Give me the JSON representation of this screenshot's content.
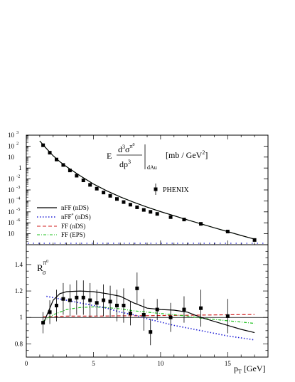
{
  "chart_data": [
    {
      "type": "scatter",
      "ylabel": {
        "prefix": "E",
        "numerator": "d",
        "numerator_sup": "3",
        "sigma": "σ",
        "pi_sup": "π",
        "pi_zero": "0",
        "denominator": "dp",
        "denominator_sup": "3",
        "subscript": "dAu",
        "units": "[mb / GeV",
        "units_sup": "2",
        "units_close": "]"
      },
      "xlim": [
        0,
        18
      ],
      "ylim_log10": [
        -7,
        3
      ],
      "yscale": "log",
      "ytick_exponents": [
        "3",
        "2",
        "",
        "-1",
        "-2",
        "-3",
        "-4",
        "-5",
        "-6",
        ""
      ],
      "ytick_base": "10",
      "ytick_one": "1",
      "legend": {
        "position": "bottom-left",
        "entries": [
          {
            "label": "nFF (nDS)",
            "color": "#000000",
            "style": "solid"
          },
          {
            "label": "nFF",
            "sup": "*",
            "label_suffix": " (nDS)",
            "color": "#1f1fd6",
            "style": "dotted"
          },
          {
            "label": "FF (nDS)",
            "color": "#d01f1f",
            "style": "dashed"
          },
          {
            "label": "FF (EPS)",
            "color": "#1fc21f",
            "style": "dashdot"
          }
        ]
      },
      "data_label": "PHENIX",
      "series": [
        {
          "name": "PHENIX",
          "marker": "square",
          "x": [
            1.25,
            1.75,
            2.25,
            2.75,
            3.25,
            3.75,
            4.25,
            4.75,
            5.25,
            5.75,
            6.25,
            6.75,
            7.25,
            7.75,
            8.25,
            8.75,
            9.25,
            9.75,
            10.75,
            11.75,
            13.0,
            15.0,
            17.0
          ],
          "y": [
            120,
            25,
            6,
            1.9,
            0.6,
            0.2,
            0.075,
            0.029,
            0.013,
            0.0058,
            0.0029,
            0.0015,
            0.00078,
            0.00045,
            0.00026,
            0.00015,
            0.0001,
            6.5e-05,
            3.3e-05,
            2e-05,
            8e-06,
            1.6e-06,
            2.7e-07
          ]
        },
        {
          "name": "nFF (nDS)",
          "x": [
            1.0,
            1.5,
            2.0,
            2.5,
            3.0,
            4.0,
            5.0,
            6.0,
            7.0,
            8.0,
            9.0,
            10.0,
            12.0,
            14.0,
            16.0,
            17.0
          ],
          "y": [
            300,
            60,
            13,
            3.8,
            1.3,
            0.2,
            0.035,
            0.0082,
            0.0023,
            0.00075,
            0.00027,
            0.000105,
            1.85e-05,
            3.5e-06,
            7e-07,
            3.2e-07
          ]
        }
      ]
    },
    {
      "type": "line",
      "ylabel": {
        "main": "R",
        "sub": "σ",
        "sup": "π",
        "sup_zero": "0"
      },
      "xlabel": {
        "main": "p",
        "sub": "T",
        "units": " [GeV]"
      },
      "xlim": [
        0,
        18
      ],
      "ylim": [
        0.7,
        1.55
      ],
      "xticks": [
        "0",
        "5",
        "10",
        "15"
      ],
      "yticks": [
        "0.8",
        "1",
        "1.2",
        "1.4"
      ],
      "reference_line": 1.0,
      "series": [
        {
          "name": "nFF (nDS)",
          "color": "#000000",
          "style": "solid",
          "x": [
            1.25,
            2.0,
            2.5,
            3.0,
            4.0,
            5.0,
            6.0,
            7.0,
            8.0,
            9.0,
            10.0,
            11.0,
            12.0,
            13.0,
            14.0,
            15.0,
            16.0,
            17.0
          ],
          "y": [
            0.95,
            1.13,
            1.18,
            1.195,
            1.2,
            1.195,
            1.18,
            1.16,
            1.11,
            1.07,
            1.06,
            1.055,
            1.04,
            1.0,
            0.97,
            0.94,
            0.91,
            0.885
          ]
        },
        {
          "name": "nFF* (nDS)",
          "color": "#1f1fd6",
          "style": "dotted",
          "x": [
            1.5,
            2.0,
            3.0,
            4.0,
            5.0,
            6.0,
            7.0,
            8.0,
            9.0,
            10.0,
            11.0,
            12.0,
            13.0,
            14.0,
            15.0,
            16.0,
            17.0
          ],
          "y": [
            1.16,
            1.15,
            1.13,
            1.11,
            1.09,
            1.07,
            1.04,
            1.02,
            0.99,
            0.965,
            0.94,
            0.92,
            0.9,
            0.88,
            0.86,
            0.845,
            0.83
          ]
        },
        {
          "name": "FF (nDS)",
          "color": "#d01f1f",
          "style": "dashed",
          "x": [
            1.25,
            3.0,
            5.0,
            7.0,
            9.0,
            11.0,
            13.0,
            15.0,
            17.0
          ],
          "y": [
            1.005,
            1.01,
            1.01,
            1.012,
            1.013,
            1.015,
            1.018,
            1.02,
            1.022
          ]
        },
        {
          "name": "FF (EPS)",
          "color": "#1fc21f",
          "style": "dashdot",
          "x": [
            1.25,
            2.0,
            3.0,
            4.0,
            5.0,
            6.0,
            7.0,
            8.0,
            9.0,
            10.0,
            11.0,
            12.0,
            13.0,
            14.0,
            15.0,
            16.0,
            17.0
          ],
          "y": [
            0.97,
            1.02,
            1.06,
            1.075,
            1.08,
            1.075,
            1.065,
            1.05,
            1.04,
            1.03,
            1.02,
            1.01,
            0.995,
            0.985,
            0.975,
            0.965,
            0.955
          ]
        },
        {
          "name": "PHENIX",
          "marker": "square",
          "x": [
            1.25,
            1.75,
            2.25,
            2.75,
            3.25,
            3.75,
            4.25,
            4.75,
            5.25,
            5.75,
            6.25,
            6.75,
            7.25,
            7.75,
            8.25,
            8.75,
            9.25,
            9.75,
            10.75,
            11.75,
            13.0,
            15.0
          ],
          "y": [
            0.96,
            1.04,
            1.09,
            1.14,
            1.13,
            1.15,
            1.15,
            1.13,
            1.11,
            1.13,
            1.12,
            1.09,
            1.09,
            1.03,
            1.22,
            1.02,
            0.89,
            1.06,
            1.0,
            1.06,
            1.07,
            1.01
          ],
          "yerr": [
            0.08,
            0.09,
            0.12,
            0.12,
            0.12,
            0.13,
            0.13,
            0.13,
            0.1,
            0.12,
            0.12,
            0.12,
            0.13,
            0.09,
            0.12,
            0.12,
            0.1,
            0.08,
            0.11,
            0.1,
            0.14,
            0.13
          ]
        }
      ]
    }
  ]
}
